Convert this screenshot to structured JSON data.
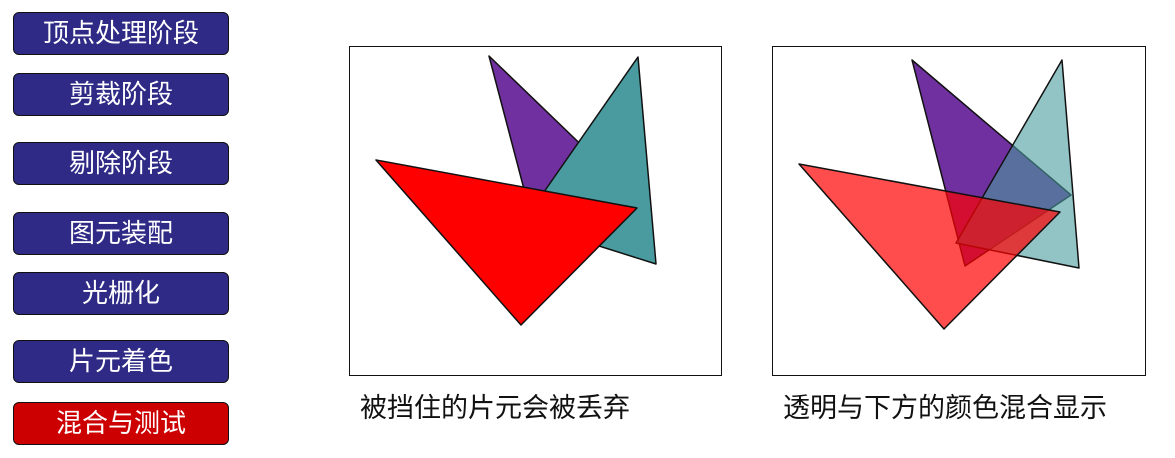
{
  "pipeline": {
    "stages": [
      {
        "label": "顶点处理阶段",
        "color": "#2e2a85"
      },
      {
        "label": "剪裁阶段",
        "color": "#2e2a85"
      },
      {
        "label": "剔除阶段",
        "color": "#2e2a85"
      },
      {
        "label": "图元装配",
        "color": "#2e2a85"
      },
      {
        "label": "光栅化",
        "color": "#2e2a85"
      },
      {
        "label": "片元着色",
        "color": "#2e2a85"
      },
      {
        "label": "混合与测试",
        "color": "#cc0000",
        "active": true
      }
    ]
  },
  "panels": [
    {
      "caption": "被挡住的片元会被丢弃",
      "mode": "opaque"
    },
    {
      "caption": "透明与下方的颜色混合显示",
      "mode": "transparent"
    }
  ],
  "colors": {
    "purple": "#7030a0",
    "teal": "#4a9b9f",
    "red": "#ff0000",
    "stage_inactive": "#2e2a85",
    "stage_active": "#cc0000"
  }
}
